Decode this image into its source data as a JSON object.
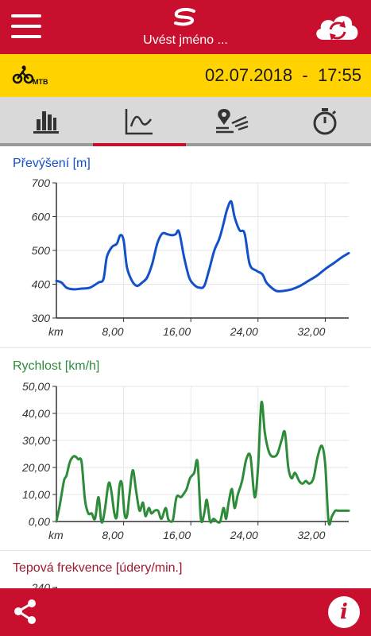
{
  "header": {
    "name_placeholder": "Uvést jméno ...",
    "menu_icon": "hamburger-menu-icon",
    "logo_icon": "app-logo-icon",
    "sync_icon": "cloud-sync-icon"
  },
  "activity": {
    "type_label": "MTB",
    "date": "02.07.2018",
    "separator": "-",
    "time": "17:55"
  },
  "tabs": [
    {
      "name": "summary",
      "icon": "bar-chart-icon",
      "active": false
    },
    {
      "name": "graphs",
      "icon": "line-chart-icon",
      "active": true
    },
    {
      "name": "map",
      "icon": "map-route-icon",
      "active": false
    },
    {
      "name": "laps",
      "icon": "stopwatch-icon",
      "active": false
    }
  ],
  "colors": {
    "brand_red": "#c8102e",
    "yellow": "#ffd200",
    "elevation": "#1450c8",
    "speed": "#2e8b3a",
    "heart_rate": "#a01830"
  },
  "chart_data": [
    {
      "type": "line",
      "title": "Převýšení [m]",
      "x_unit_label": "km",
      "x_ticks": [
        "8,00",
        "16,00",
        "24,00",
        "32,00"
      ],
      "y_ticks": [
        "300",
        "400",
        "500",
        "600",
        "700"
      ],
      "xlim": [
        0,
        34.8
      ],
      "ylim": [
        300,
        700
      ],
      "series": [
        {
          "x": [
            0,
            0.6,
            1.2,
            2,
            3,
            4,
            5,
            5.6,
            6.0,
            6.6,
            7.2,
            7.6,
            8.0,
            8.4,
            9.0,
            9.6,
            10.2,
            10.8,
            11.4,
            12.0,
            12.6,
            13.2,
            13.8,
            14.2,
            14.6,
            15.2,
            15.8,
            16.4,
            17.0,
            17.6,
            18.2,
            18.8,
            19.4,
            19.9,
            20.3,
            20.8,
            21.2,
            21.8,
            22.4,
            23.0,
            23.8,
            24.5,
            25.0,
            25.6,
            26.2,
            27,
            28,
            29,
            30,
            31,
            32,
            33,
            34,
            34.8
          ],
          "y": [
            410,
            405,
            390,
            385,
            387,
            390,
            405,
            415,
            480,
            510,
            520,
            545,
            530,
            450,
            410,
            395,
            405,
            420,
            460,
            520,
            550,
            548,
            545,
            548,
            555,
            480,
            420,
            398,
            390,
            395,
            445,
            500,
            535,
            580,
            620,
            645,
            600,
            560,
            550,
            460,
            440,
            430,
            405,
            390,
            380,
            380,
            385,
            395,
            410,
            425,
            445,
            462,
            480,
            492
          ]
        }
      ]
    },
    {
      "type": "line",
      "title": "Rychlost [km/h]",
      "x_unit_label": "km",
      "x_ticks": [
        "8,00",
        "16,00",
        "24,00",
        "32,00"
      ],
      "y_ticks": [
        "0,00",
        "10,00",
        "20,00",
        "30,00",
        "40,00",
        "50,00"
      ],
      "xlim": [
        0,
        34.8
      ],
      "ylim": [
        0,
        50
      ],
      "series": [
        {
          "x": [
            0,
            0.4,
            0.9,
            1.2,
            1.6,
            2.0,
            2.3,
            2.6,
            3.0,
            3.4,
            3.8,
            4.2,
            4.6,
            5.0,
            5.3,
            5.5,
            5.8,
            6.2,
            6.5,
            6.9,
            7.2,
            7.5,
            7.8,
            8.1,
            8.4,
            8.7,
            9.1,
            9.5,
            9.9,
            10.3,
            10.6,
            11.0,
            11.3,
            11.7,
            12.1,
            12.5,
            13.0,
            13.3,
            13.6,
            13.9,
            14.3,
            14.8,
            15.1,
            15.5,
            15.9,
            16.4,
            16.8,
            17.2,
            17.6,
            17.9,
            18.3,
            18.7,
            19.1,
            19.5,
            19.9,
            20.2,
            20.5,
            20.9,
            21.2,
            21.6,
            22.1,
            22.6,
            23.1,
            23.6,
            24.0,
            24.4,
            24.8,
            25.1,
            25.4,
            25.8,
            26.3,
            26.8,
            27.2,
            27.6,
            28.0,
            28.4,
            28.9,
            29.3,
            29.7,
            30.1,
            30.6,
            31.1,
            31.6,
            32.0,
            32.4,
            32.8,
            33.2,
            33.5,
            33.8,
            34.2,
            34.8
          ],
          "y": [
            0,
            6,
            15,
            17,
            22,
            24,
            24,
            23,
            22,
            8,
            3,
            3,
            1,
            9,
            1,
            0,
            5,
            14,
            12,
            3,
            2,
            13,
            14,
            3,
            2,
            10,
            19,
            11,
            4,
            7,
            2,
            5,
            3,
            4,
            4,
            1,
            5,
            1,
            0,
            1,
            9,
            9,
            10,
            12,
            16,
            18,
            22,
            1,
            3,
            8,
            0,
            1,
            0,
            0,
            5,
            1,
            7,
            12,
            5,
            10,
            15,
            23,
            24,
            9,
            20,
            44,
            33,
            28,
            25,
            24,
            25,
            30,
            33,
            20,
            16,
            18,
            15,
            14,
            15,
            14,
            16,
            24,
            28,
            21,
            0,
            2,
            4,
            4,
            4,
            4,
            4
          ]
        }
      ]
    },
    {
      "type": "line",
      "title": "Tepová frekvence [údery/min.]",
      "y_ticks": [
        "240"
      ]
    }
  ]
}
